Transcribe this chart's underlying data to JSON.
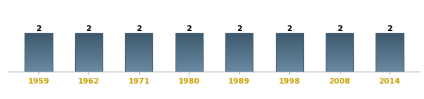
{
  "categories": [
    "1959",
    "1962",
    "1971",
    "1980",
    "1989",
    "1998",
    "2008",
    "2014"
  ],
  "values": [
    2,
    2,
    2,
    2,
    2,
    2,
    2,
    2
  ],
  "bar_color_top": "#6e8fa8",
  "bar_color_mid": "#4e6f87",
  "bar_color_bottom": "#3a5568",
  "bar_edge_color": "#4a6070",
  "value_label_color": "#000000",
  "tick_label_color": "#c8a000",
  "background_color": "#ffffff",
  "ylim": [
    0,
    2.8
  ],
  "value_fontsize": 8,
  "tick_fontsize": 8,
  "bar_width": 0.55
}
